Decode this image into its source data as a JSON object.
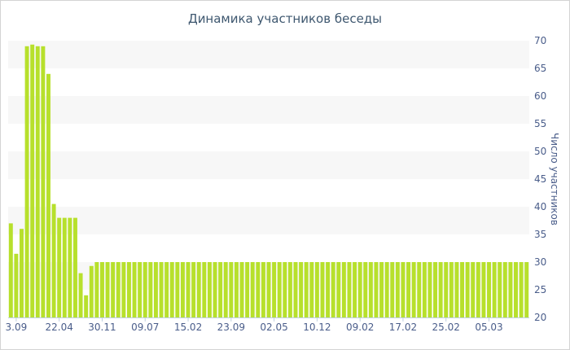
{
  "chart_data": {
    "type": "bar",
    "title": "Динамика участников беседы",
    "ylabel": "Число участников",
    "ylim": [
      20,
      70
    ],
    "y_ticks": [
      20,
      25,
      30,
      35,
      40,
      45,
      50,
      55,
      60,
      65,
      70
    ],
    "grid": "alternating horizontal bands",
    "x_tick_labels": [
      {
        "index": 1,
        "label": "3.09"
      },
      {
        "index": 9,
        "label": "22.04"
      },
      {
        "index": 17,
        "label": "30.11"
      },
      {
        "index": 25,
        "label": "09.07"
      },
      {
        "index": 33,
        "label": "15.02"
      },
      {
        "index": 41,
        "label": "23.09"
      },
      {
        "index": 49,
        "label": "02.05"
      },
      {
        "index": 57,
        "label": "10.12"
      },
      {
        "index": 65,
        "label": "09.02"
      },
      {
        "index": 73,
        "label": "17.02"
      },
      {
        "index": 81,
        "label": "25.02"
      },
      {
        "index": 89,
        "label": "05.03"
      }
    ],
    "values": [
      37,
      31.5,
      36,
      69,
      69.3,
      69,
      69,
      64,
      40.5,
      38,
      38,
      38,
      38,
      28,
      24,
      29.3,
      30,
      30,
      30,
      30,
      30,
      30,
      30,
      30,
      30,
      30,
      30,
      30,
      30,
      30,
      30,
      30,
      30,
      30,
      30,
      30,
      30,
      30,
      30,
      30,
      30,
      30,
      30,
      30,
      30,
      30,
      30,
      30,
      30,
      30,
      30,
      30,
      30,
      30,
      30,
      30,
      30,
      30,
      30,
      30,
      30,
      30,
      30,
      30,
      30,
      30,
      30,
      30,
      30,
      30,
      30,
      30,
      30,
      30,
      30,
      30,
      30,
      30,
      30,
      30,
      30,
      30,
      30,
      30,
      30,
      30,
      30,
      30,
      30,
      30,
      30,
      30,
      30,
      30,
      30,
      30,
      30
    ],
    "colors": {
      "bar": "#b7e02c",
      "band": "#f7f7f7",
      "axis": "#c0d0e0",
      "text": "#4a5d8a",
      "title": "#3e576f"
    }
  }
}
